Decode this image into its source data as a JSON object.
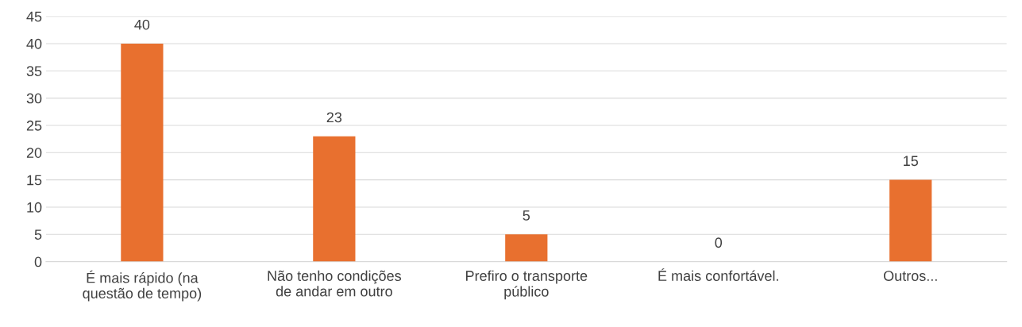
{
  "chart_data": {
    "type": "bar",
    "categories": [
      "É mais rápido (na questão de tempo)",
      "Não tenho condições de andar em outro",
      "Prefiro o transporte público",
      "É mais confortável.",
      "Outros..."
    ],
    "values": [
      40,
      23,
      5,
      0,
      15
    ],
    "color": "#e8702f",
    "ylim": [
      0,
      45
    ],
    "yticks": [
      0,
      5,
      10,
      15,
      20,
      25,
      30,
      35,
      40,
      45
    ],
    "grid": "y",
    "data_labels": true
  }
}
